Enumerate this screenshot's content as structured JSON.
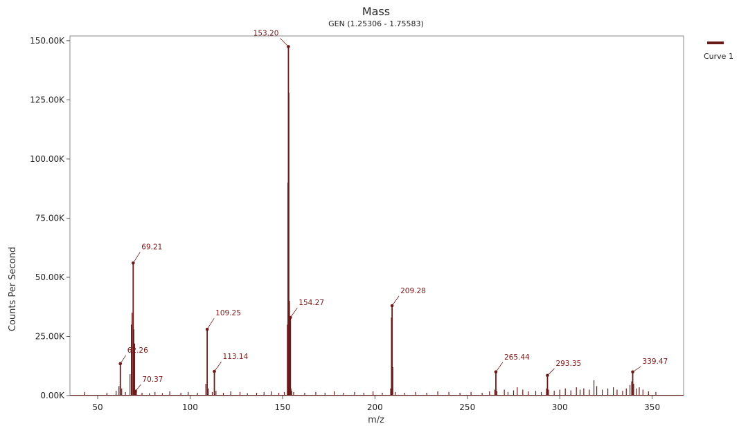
{
  "chart_data": {
    "type": "line",
    "title": "Mass",
    "subtitle": "GEN (1.25306 - 1.75583)",
    "xlabel": "m/z",
    "ylabel": "Counts Per Second",
    "xlim": [
      35,
      367
    ],
    "ylim": [
      0,
      152000
    ],
    "x_ticks": [
      50,
      100,
      150,
      200,
      250,
      300,
      350
    ],
    "x_tick_labels": [
      "50",
      "100",
      "150",
      "200",
      "250",
      "300",
      "350"
    ],
    "y_ticks": [
      0,
      25000,
      50000,
      75000,
      100000,
      125000,
      150000
    ],
    "y_tick_labels": [
      "0.00K",
      "25.00K",
      "50.00K",
      "75.00K",
      "100.00K",
      "125.00K",
      "150.00K"
    ],
    "grid": false,
    "legend_position": "top-right",
    "series": [
      {
        "name": "Curve 1",
        "color": "#6b1a1a",
        "peaks": [
          {
            "x": 62.26,
            "y": 13500,
            "label": "62.26"
          },
          {
            "x": 69.21,
            "y": 56000,
            "label": "69.21"
          },
          {
            "x": 70.37,
            "y": 1800,
            "label": "70.37"
          },
          {
            "x": 109.25,
            "y": 28000,
            "label": "109.25"
          },
          {
            "x": 113.14,
            "y": 10200,
            "label": "113.14"
          },
          {
            "x": 153.2,
            "y": 147500,
            "label": "153.20"
          },
          {
            "x": 154.27,
            "y": 33000,
            "label": "154.27"
          },
          {
            "x": 209.28,
            "y": 38000,
            "label": "209.28"
          },
          {
            "x": 265.44,
            "y": 10000,
            "label": "265.44"
          },
          {
            "x": 293.35,
            "y": 8500,
            "label": "293.35"
          },
          {
            "x": 339.47,
            "y": 10000,
            "label": "339.47"
          }
        ],
        "minor_peaks": [
          [
            43,
            1500
          ],
          [
            55,
            1200
          ],
          [
            60,
            2000
          ],
          [
            61.5,
            4000
          ],
          [
            63,
            3000
          ],
          [
            65,
            1500
          ],
          [
            67.5,
            9000
          ],
          [
            68.2,
            30000
          ],
          [
            68.6,
            35000
          ],
          [
            69.6,
            28000
          ],
          [
            70.0,
            22000
          ],
          [
            71,
            2500
          ],
          [
            74,
            1200
          ],
          [
            78,
            1000
          ],
          [
            81,
            1500
          ],
          [
            85,
            1000
          ],
          [
            89,
            1800
          ],
          [
            95,
            1200
          ],
          [
            99,
            1500
          ],
          [
            104,
            1200
          ],
          [
            108.5,
            5000
          ],
          [
            110,
            3000
          ],
          [
            112,
            1500
          ],
          [
            114,
            2000
          ],
          [
            118,
            1200
          ],
          [
            122,
            1800
          ],
          [
            127,
            1500
          ],
          [
            131,
            1000
          ],
          [
            136,
            1200
          ],
          [
            140,
            1500
          ],
          [
            144,
            1800
          ],
          [
            148,
            1200
          ],
          [
            151,
            1500
          ],
          [
            152.6,
            30000
          ],
          [
            152.9,
            90000
          ],
          [
            153.5,
            128000
          ],
          [
            153.8,
            40000
          ],
          [
            154.6,
            3000
          ],
          [
            155,
            2000
          ],
          [
            156,
            1500
          ],
          [
            162,
            1200
          ],
          [
            168,
            1500
          ],
          [
            173,
            1200
          ],
          [
            178,
            1800
          ],
          [
            183,
            1200
          ],
          [
            189,
            1500
          ],
          [
            194,
            1200
          ],
          [
            199,
            1800
          ],
          [
            204,
            1200
          ],
          [
            208.5,
            3000
          ],
          [
            208.9,
            33000
          ],
          [
            209.7,
            12000
          ],
          [
            211,
            1500
          ],
          [
            216,
            1200
          ],
          [
            222,
            1500
          ],
          [
            228,
            1200
          ],
          [
            234,
            1800
          ],
          [
            240,
            1500
          ],
          [
            246,
            1200
          ],
          [
            252,
            1500
          ],
          [
            258,
            1200
          ],
          [
            262,
            1800
          ],
          [
            264.8,
            2500
          ],
          [
            266,
            2000
          ],
          [
            270,
            2500
          ],
          [
            272,
            1500
          ],
          [
            275,
            2200
          ],
          [
            277,
            3500
          ],
          [
            280,
            2500
          ],
          [
            283,
            1800
          ],
          [
            287,
            2000
          ],
          [
            290,
            1500
          ],
          [
            292.8,
            3000
          ],
          [
            294,
            2500
          ],
          [
            297,
            2000
          ],
          [
            300,
            2500
          ],
          [
            303,
            3000
          ],
          [
            306,
            2200
          ],
          [
            309,
            3500
          ],
          [
            311,
            2500
          ],
          [
            313,
            3000
          ],
          [
            316,
            2500
          ],
          [
            318.5,
            6500
          ],
          [
            320,
            4000
          ],
          [
            323,
            2500
          ],
          [
            326,
            3000
          ],
          [
            329,
            3500
          ],
          [
            331,
            2500
          ],
          [
            334,
            2000
          ],
          [
            336,
            3000
          ],
          [
            338,
            4500
          ],
          [
            338.9,
            6000
          ],
          [
            340,
            5000
          ],
          [
            341.5,
            3000
          ],
          [
            343,
            3500
          ],
          [
            345,
            2500
          ],
          [
            348,
            1800
          ],
          [
            352,
            1500
          ]
        ]
      }
    ]
  }
}
